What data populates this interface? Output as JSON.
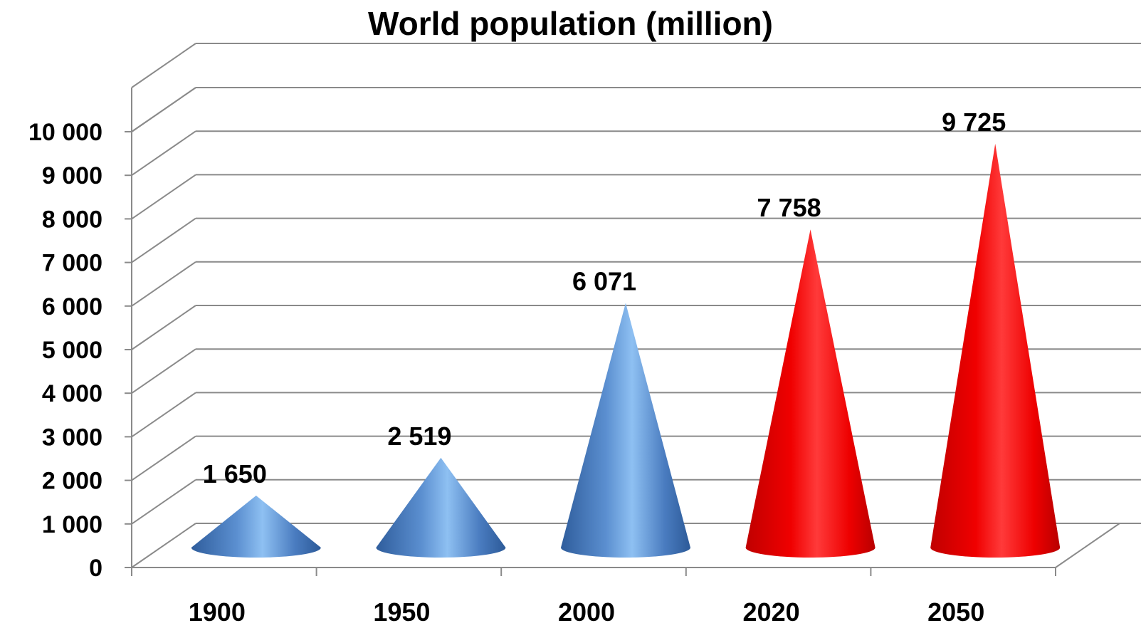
{
  "chart_data": {
    "type": "bar",
    "title": "World population (million)",
    "categories": [
      "1900",
      "1950",
      "2000",
      "2020",
      "2050"
    ],
    "values": [
      1650,
      2519,
      6071,
      7758,
      9725
    ],
    "value_labels": [
      "1 650",
      "2 519",
      "6 071",
      "7 758",
      "9 725"
    ],
    "ylim": [
      0,
      10000
    ],
    "y_ticks": [
      0,
      1000,
      2000,
      3000,
      4000,
      5000,
      6000,
      7000,
      8000,
      9000,
      10000
    ],
    "y_tick_labels": [
      "0",
      "1 000",
      "2 000",
      "3 000",
      "4 000",
      "5 000",
      "6 000",
      "7 000",
      "8 000",
      "9 000",
      "10 000"
    ],
    "grid": true,
    "legend": "none",
    "bar_shape": "cone",
    "colors": [
      "#4a7cc0",
      "#4a7cc0",
      "#4a7cc0",
      "#ee0000",
      "#ee0000"
    ]
  }
}
